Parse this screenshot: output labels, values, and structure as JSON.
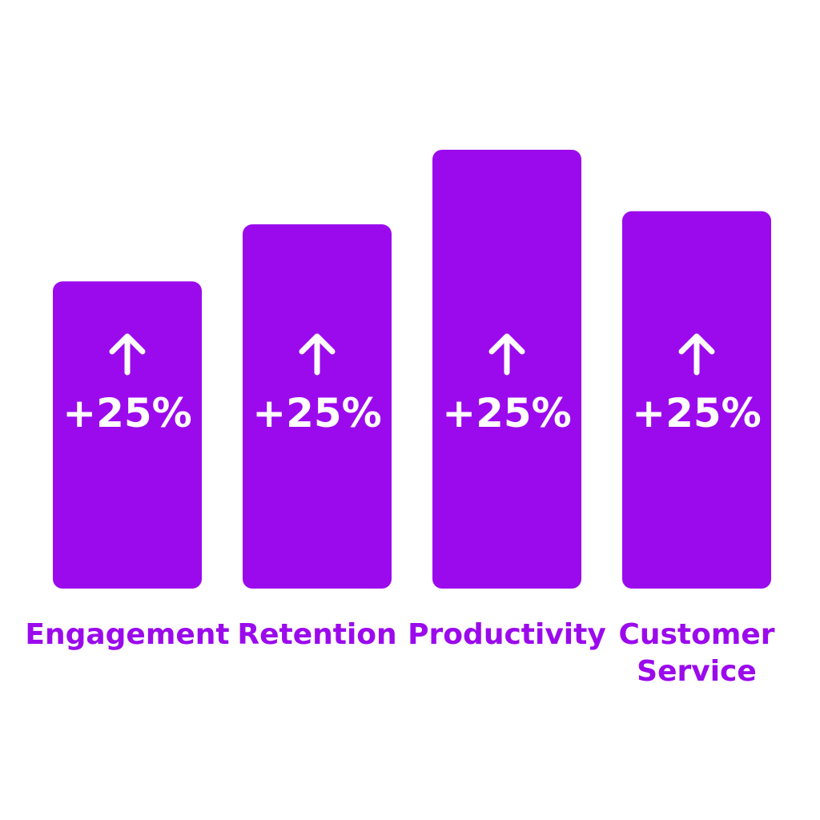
{
  "chart_data": {
    "type": "bar",
    "categories": [
      [
        "Engagement"
      ],
      [
        "Retention"
      ],
      [
        "Productivity"
      ],
      [
        "Customer",
        "Service"
      ]
    ],
    "values": [
      25,
      25,
      25,
      25
    ],
    "value_labels": [
      "+25%",
      "+25%",
      "+25%",
      "+25%"
    ],
    "bar_heights_relative": [
      0.7,
      0.83,
      1.0,
      0.86
    ],
    "title": "",
    "xlabel": "",
    "ylabel": "",
    "grid": false,
    "legend": "none",
    "bar_icon": "arrow-up-icon",
    "colors": {
      "bar": "#9B0AEC",
      "label": "#9B0AEC",
      "bar_text": "#FFFFFF"
    }
  }
}
